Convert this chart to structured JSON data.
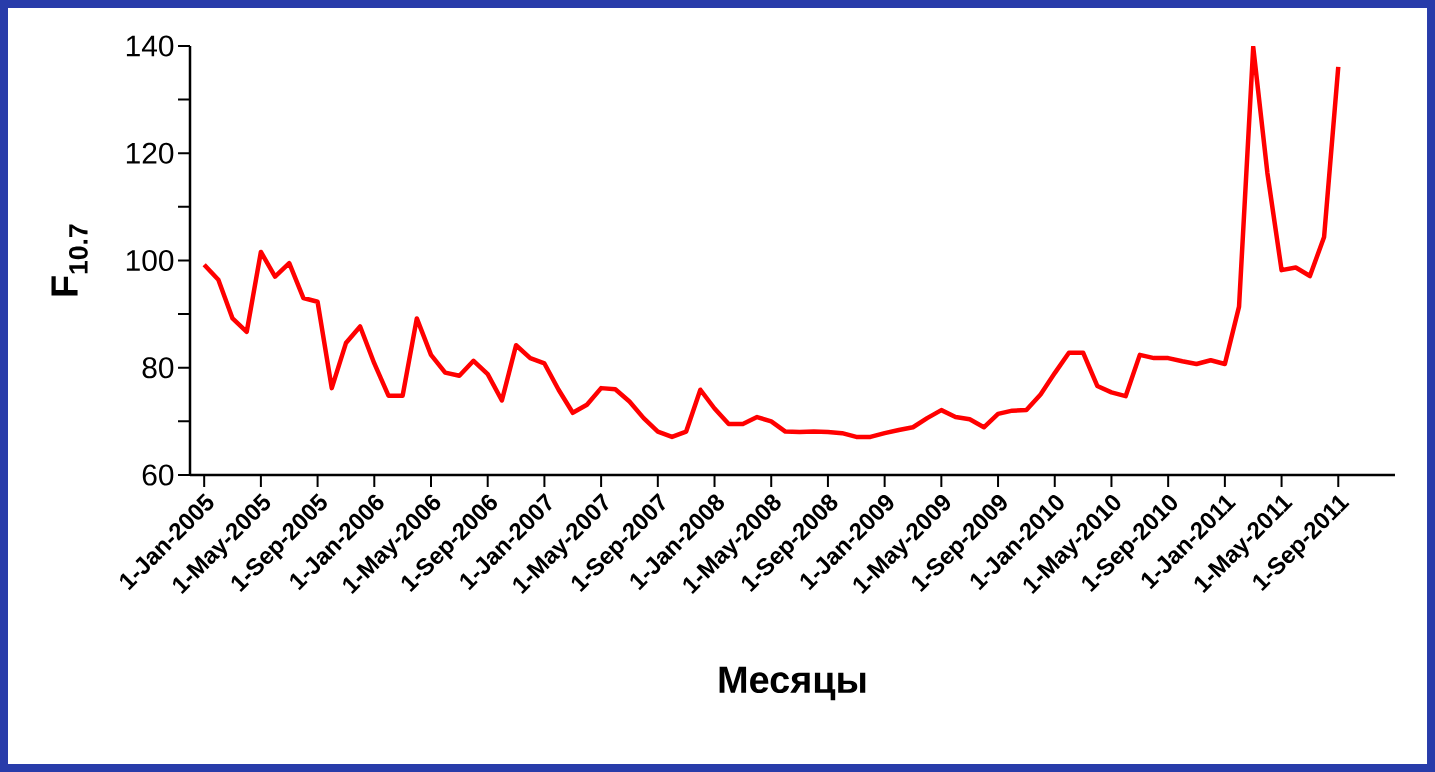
{
  "chart_data": {
    "type": "line",
    "xlabel": "Месяцы",
    "ylabel": "F$_{10.7}$",
    "x": [
      "2005-01",
      "2005-02",
      "2005-03",
      "2005-04",
      "2005-05",
      "2005-06",
      "2005-07",
      "2005-08",
      "2005-09",
      "2005-10",
      "2005-11",
      "2005-12",
      "2006-01",
      "2006-02",
      "2006-03",
      "2006-04",
      "2006-05",
      "2006-06",
      "2006-07",
      "2006-08",
      "2006-09",
      "2006-10",
      "2006-11",
      "2006-12",
      "2007-01",
      "2007-02",
      "2007-03",
      "2007-04",
      "2007-05",
      "2007-06",
      "2007-07",
      "2007-08",
      "2007-09",
      "2007-10",
      "2007-11",
      "2007-12",
      "2008-01",
      "2008-02",
      "2008-03",
      "2008-04",
      "2008-05",
      "2008-06",
      "2008-07",
      "2008-08",
      "2008-09",
      "2008-10",
      "2008-11",
      "2008-12",
      "2009-01",
      "2009-02",
      "2009-03",
      "2009-04",
      "2009-05",
      "2009-06",
      "2009-07",
      "2009-08",
      "2009-09",
      "2009-10",
      "2009-11",
      "2009-12",
      "2010-01",
      "2010-02",
      "2010-03",
      "2010-04",
      "2010-05",
      "2010-06",
      "2010-07",
      "2010-08",
      "2010-09",
      "2010-10",
      "2010-11",
      "2010-12",
      "2011-01",
      "2011-02",
      "2011-03",
      "2011-04",
      "2011-05",
      "2011-06",
      "2011-07",
      "2011-08",
      "2011-09"
    ],
    "values": [
      99.2,
      96.4,
      89.2,
      86.7,
      101.6,
      97.0,
      99.5,
      93.0,
      92.3,
      76.2,
      84.6,
      87.7,
      80.8,
      74.8,
      74.8,
      89.2,
      82.4,
      79.1,
      78.5,
      81.3,
      78.8,
      73.9,
      84.2,
      81.8,
      80.8,
      75.9,
      71.6,
      73.1,
      76.2,
      76.0,
      73.7,
      70.6,
      68.1,
      67.1,
      68.1,
      75.9,
      72.4,
      69.5,
      69.5,
      70.8,
      70.0,
      68.1,
      68.0,
      68.1,
      68.0,
      67.8,
      67.1,
      67.1,
      67.8,
      68.4,
      68.9,
      70.6,
      72.1,
      70.8,
      70.4,
      68.9,
      71.4,
      72.0,
      72.1,
      75.0,
      79.0,
      82.8,
      82.8,
      76.6,
      75.4,
      74.7,
      82.4,
      81.8,
      81.8,
      81.2,
      80.7,
      81.4,
      80.7,
      91.4,
      139.8,
      116.3,
      98.2,
      98.7,
      97.1,
      104.4,
      136.1
    ],
    "color": "#ff0000",
    "marker": "none",
    "line_style": "solid",
    "xlim": [
      "2004-12",
      "2012-01"
    ],
    "ylim": [
      60,
      140
    ],
    "xticks": [
      {
        "value": "2005-01-01",
        "label": "1-Jan-2005"
      },
      {
        "value": "2005-05-01",
        "label": "1-May-2005"
      },
      {
        "value": "2005-09-01",
        "label": "1-Sep-2005"
      },
      {
        "value": "2006-01-01",
        "label": "1-Jan-2006"
      },
      {
        "value": "2006-05-01",
        "label": "1-May-2006"
      },
      {
        "value": "2006-09-01",
        "label": "1-Sep-2006"
      },
      {
        "value": "2007-01-01",
        "label": "1-Jan-2007"
      },
      {
        "value": "2007-05-01",
        "label": "1-May-2007"
      },
      {
        "value": "2007-09-01",
        "label": "1-Sep-2007"
      },
      {
        "value": "2008-01-01",
        "label": "1-Jan-2008"
      },
      {
        "value": "2008-05-01",
        "label": "1-May-2008"
      },
      {
        "value": "2008-09-01",
        "label": "1-Sep-2008"
      },
      {
        "value": "2009-01-01",
        "label": "1-Jan-2009"
      },
      {
        "value": "2009-05-01",
        "label": "1-May-2009"
      },
      {
        "value": "2009-09-01",
        "label": "1-Sep-2009"
      },
      {
        "value": "2010-01-01",
        "label": "1-Jan-2010"
      },
      {
        "value": "2010-05-01",
        "label": "1-May-2010"
      },
      {
        "value": "2010-09-01",
        "label": "1-Sep-2010"
      },
      {
        "value": "2011-01-01",
        "label": "1-Jan-2011"
      },
      {
        "value": "2011-05-01",
        "label": "1-May-2011"
      },
      {
        "value": "2011-09-01",
        "label": "1-Sep-2011"
      }
    ],
    "yticks": [
      60,
      {
        "value": 70,
        "label": null
      },
      80,
      {
        "value": 90,
        "label": null
      },
      100,
      {
        "value": 110,
        "label": null
      },
      120,
      {
        "value": 130,
        "label": null
      },
      140
    ]
  }
}
